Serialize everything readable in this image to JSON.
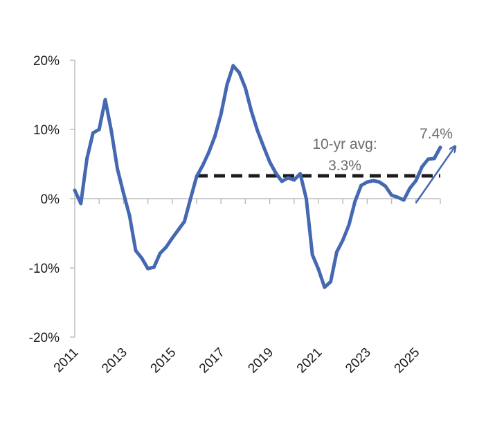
{
  "chart_data": {
    "type": "line",
    "title": "",
    "xlabel": "",
    "ylabel": "",
    "ylim": [
      -20,
      20
    ],
    "xlim": [
      2011,
      2026.7
    ],
    "yticks": [
      20,
      10,
      0,
      -10,
      -20
    ],
    "ytick_labels": [
      "20%",
      "10%",
      "0%",
      "-10%",
      "-20%"
    ],
    "xticks": [
      2011,
      2013,
      2015,
      2017,
      2019,
      2021,
      2023,
      2025
    ],
    "xtick_labels": [
      "2011",
      "2013",
      "2015",
      "2017",
      "2019",
      "2021",
      "2023",
      "2025"
    ],
    "grid": false,
    "series": [
      {
        "color": "#4468b1",
        "points": [
          [
            2011.0,
            1.2
          ],
          [
            2011.25,
            -0.7
          ],
          [
            2011.5,
            5.8
          ],
          [
            2011.75,
            9.5
          ],
          [
            2012.0,
            10.0
          ],
          [
            2012.25,
            14.3
          ],
          [
            2012.5,
            9.8
          ],
          [
            2012.75,
            4.3
          ],
          [
            2013.0,
            0.8
          ],
          [
            2013.25,
            -2.5
          ],
          [
            2013.5,
            -7.5
          ],
          [
            2013.75,
            -8.6
          ],
          [
            2014.0,
            -10.1
          ],
          [
            2014.25,
            -9.9
          ],
          [
            2014.5,
            -7.9
          ],
          [
            2014.75,
            -7.0
          ],
          [
            2015.0,
            -5.7
          ],
          [
            2015.25,
            -4.5
          ],
          [
            2015.5,
            -3.3
          ],
          [
            2015.75,
            0.0
          ],
          [
            2016.0,
            3.2
          ],
          [
            2016.25,
            4.8
          ],
          [
            2016.5,
            6.7
          ],
          [
            2016.75,
            9.0
          ],
          [
            2017.0,
            12.2
          ],
          [
            2017.25,
            16.5
          ],
          [
            2017.5,
            19.2
          ],
          [
            2017.75,
            18.2
          ],
          [
            2018.0,
            16.0
          ],
          [
            2018.25,
            12.6
          ],
          [
            2018.5,
            9.8
          ],
          [
            2018.75,
            7.5
          ],
          [
            2019.0,
            5.3
          ],
          [
            2019.25,
            3.7
          ],
          [
            2019.5,
            2.5
          ],
          [
            2019.75,
            3.0
          ],
          [
            2020.0,
            2.7
          ],
          [
            2020.25,
            3.6
          ],
          [
            2020.5,
            0.0
          ],
          [
            2020.75,
            -8.1
          ],
          [
            2021.0,
            -10.2
          ],
          [
            2021.25,
            -12.8
          ],
          [
            2021.5,
            -12.0
          ],
          [
            2021.75,
            -7.7
          ],
          [
            2022.0,
            -6.0
          ],
          [
            2022.25,
            -3.8
          ],
          [
            2022.5,
            -0.4
          ],
          [
            2022.75,
            1.9
          ],
          [
            2023.0,
            2.4
          ],
          [
            2023.25,
            2.6
          ],
          [
            2023.5,
            2.4
          ],
          [
            2023.75,
            1.8
          ],
          [
            2024.0,
            0.5
          ],
          [
            2024.25,
            0.2
          ],
          [
            2024.5,
            -0.2
          ],
          [
            2024.75,
            1.5
          ],
          [
            2025.0,
            2.6
          ],
          [
            2025.25,
            4.6
          ],
          [
            2025.5,
            5.7
          ],
          [
            2025.75,
            5.8
          ],
          [
            2026.0,
            7.4
          ]
        ]
      }
    ],
    "reference_line": {
      "y": 3.3,
      "x_start": 2016.0,
      "x_end": 2026.0,
      "style": "dashed",
      "color": "#1c1c1c"
    },
    "annotations": {
      "avg_line1": "10-yr avg:",
      "avg_line2": "3.3%",
      "last_value": "7.4%"
    },
    "trend_arrow": {
      "from": [
        2025.0,
        -0.6
      ],
      "to": [
        2026.6,
        7.5
      ],
      "color": "#4468b1"
    }
  }
}
